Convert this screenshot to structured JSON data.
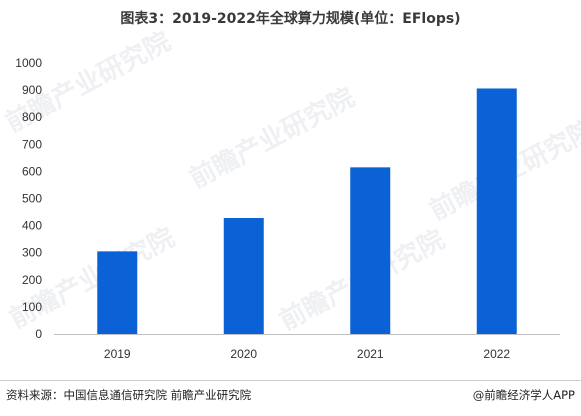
{
  "title": "图表3：2019-2022年全球算力规模(单位：EFlops)",
  "source": "资料来源：中国信息通信研究院 前瞻产业研究院",
  "credit": "@前瞻经济学人APP",
  "watermark": "前瞻产业研究院",
  "colors": {
    "bar": "#0a62d6",
    "axis": "#bfbfbf",
    "text": "#333333"
  },
  "chart_data": {
    "type": "bar",
    "categories": [
      "2019",
      "2020",
      "2021",
      "2022"
    ],
    "values": [
      305,
      428,
      615,
      906
    ],
    "title": "图表3：2019-2022年全球算力规模(单位：EFlops)",
    "xlabel": "",
    "ylabel": "",
    "ylim": [
      0,
      1000
    ],
    "yticks": [
      0,
      100,
      200,
      300,
      400,
      500,
      600,
      700,
      800,
      900,
      1000
    ],
    "grid": false,
    "legend": "none"
  }
}
